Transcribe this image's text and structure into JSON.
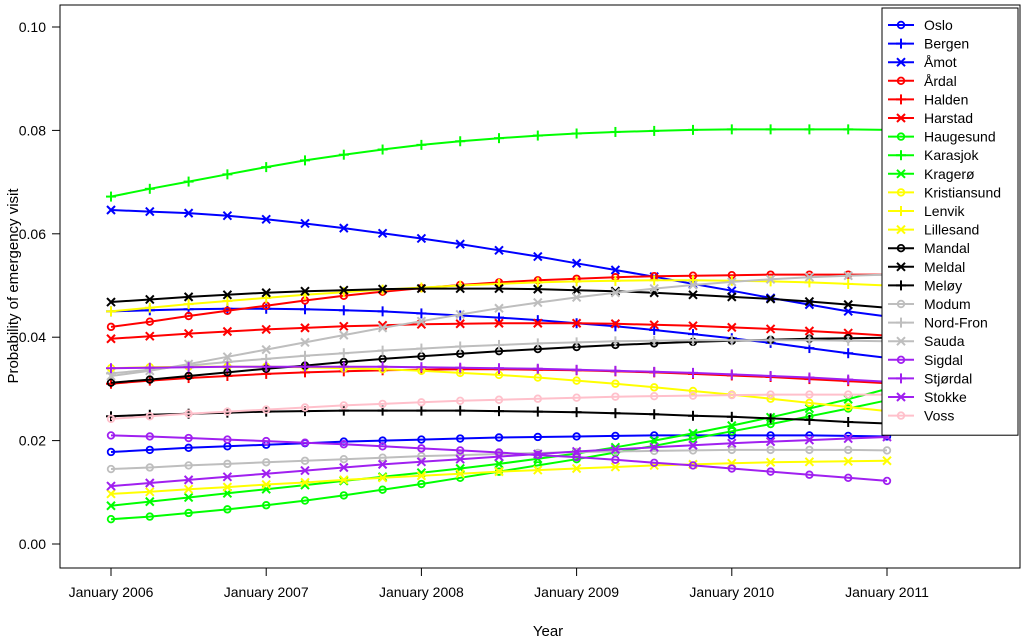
{
  "chart_data": {
    "type": "line",
    "xlabel": "Year",
    "ylabel": "Probability of emergency visit",
    "xlim": [
      2006.0,
      2011.0
    ],
    "ylim": [
      0.0,
      0.1
    ],
    "x_ticks": [
      {
        "value": 2006,
        "label": "January 2006"
      },
      {
        "value": 2007,
        "label": "January 2007"
      },
      {
        "value": 2008,
        "label": "January 2008"
      },
      {
        "value": 2009,
        "label": "January 2009"
      },
      {
        "value": 2010,
        "label": "January 2010"
      },
      {
        "value": 2011,
        "label": "January 2011"
      }
    ],
    "y_ticks": [
      {
        "value": 0.0,
        "label": "0.00"
      },
      {
        "value": 0.02,
        "label": "0.02"
      },
      {
        "value": 0.04,
        "label": "0.04"
      },
      {
        "value": 0.06,
        "label": "0.06"
      },
      {
        "value": 0.08,
        "label": "0.08"
      },
      {
        "value": 0.1,
        "label": "0.10"
      }
    ],
    "grid": false,
    "legend_position": "top-right",
    "x": [
      2006.0,
      2006.25,
      2006.5,
      2006.75,
      2007.0,
      2007.25,
      2007.5,
      2007.75,
      2008.0,
      2008.25,
      2008.5,
      2008.75,
      2009.0,
      2009.25,
      2009.5,
      2009.75,
      2010.0,
      2010.25,
      2010.5,
      2010.75,
      2011.0
    ],
    "series": [
      {
        "name": "Oslo",
        "color": "#0000FF",
        "marker": "circle",
        "values": [
          0.0178,
          0.0182,
          0.0186,
          0.0189,
          0.0192,
          0.0195,
          0.0198,
          0.02,
          0.0202,
          0.0204,
          0.0206,
          0.0207,
          0.0208,
          0.0209,
          0.021,
          0.021,
          0.021,
          0.021,
          0.021,
          0.0209,
          0.0208
        ]
      },
      {
        "name": "Bergen",
        "color": "#0000FF",
        "marker": "plus",
        "values": [
          0.045,
          0.0452,
          0.0454,
          0.0455,
          0.0455,
          0.0454,
          0.0452,
          0.045,
          0.0446,
          0.0442,
          0.0438,
          0.0433,
          0.0427,
          0.0421,
          0.0414,
          0.0406,
          0.0398,
          0.0389,
          0.0379,
          0.0369,
          0.036
        ]
      },
      {
        "name": "Åmot",
        "color": "#0000FF",
        "marker": "cross",
        "values": [
          0.0646,
          0.0643,
          0.064,
          0.0635,
          0.0628,
          0.062,
          0.0611,
          0.0601,
          0.0591,
          0.058,
          0.0568,
          0.0556,
          0.0543,
          0.053,
          0.0517,
          0.0503,
          0.049,
          0.0476,
          0.0463,
          0.045,
          0.044
        ]
      },
      {
        "name": "Årdal",
        "color": "#FF0000",
        "marker": "circle",
        "values": [
          0.042,
          0.043,
          0.0441,
          0.0451,
          0.0461,
          0.0471,
          0.048,
          0.0488,
          0.0495,
          0.0501,
          0.0506,
          0.051,
          0.0513,
          0.0516,
          0.0518,
          0.0519,
          0.052,
          0.0521,
          0.0521,
          0.0521,
          0.0521
        ]
      },
      {
        "name": "Halden",
        "color": "#FF0000",
        "marker": "plus",
        "values": [
          0.031,
          0.0316,
          0.0321,
          0.0325,
          0.0329,
          0.0332,
          0.0334,
          0.0336,
          0.0337,
          0.0338,
          0.0338,
          0.0337,
          0.0336,
          0.0334,
          0.0332,
          0.0329,
          0.0326,
          0.0323,
          0.0319,
          0.0315,
          0.0311
        ]
      },
      {
        "name": "Harstad",
        "color": "#FF0000",
        "marker": "cross",
        "values": [
          0.0397,
          0.0402,
          0.0407,
          0.0411,
          0.0415,
          0.0418,
          0.0421,
          0.0423,
          0.0425,
          0.0426,
          0.0427,
          0.0427,
          0.0427,
          0.0426,
          0.0424,
          0.0422,
          0.0419,
          0.0416,
          0.0412,
          0.0408,
          0.0403
        ]
      },
      {
        "name": "Haugesund",
        "color": "#00FF00",
        "marker": "circle",
        "values": [
          0.0048,
          0.0053,
          0.006,
          0.0067,
          0.0075,
          0.0084,
          0.0094,
          0.0105,
          0.0116,
          0.0128,
          0.014,
          0.0152,
          0.0164,
          0.0177,
          0.019,
          0.0204,
          0.0218,
          0.0232,
          0.0247,
          0.0262,
          0.0278
        ]
      },
      {
        "name": "Karasjok",
        "color": "#00FF00",
        "marker": "plus",
        "values": [
          0.0672,
          0.0687,
          0.0701,
          0.0715,
          0.0729,
          0.0742,
          0.0753,
          0.0763,
          0.0772,
          0.0779,
          0.0785,
          0.079,
          0.0794,
          0.0797,
          0.0799,
          0.0801,
          0.0802,
          0.0802,
          0.0802,
          0.0802,
          0.0801
        ]
      },
      {
        "name": "Kragerø",
        "color": "#00FF00",
        "marker": "cross",
        "values": [
          0.0074,
          0.0082,
          0.009,
          0.0098,
          0.0106,
          0.0114,
          0.0122,
          0.013,
          0.0138,
          0.0146,
          0.0155,
          0.0165,
          0.0175,
          0.0187,
          0.02,
          0.0214,
          0.0229,
          0.0245,
          0.0262,
          0.028,
          0.03
        ]
      },
      {
        "name": "Kristiansund",
        "color": "#FFFF00",
        "marker": "circle",
        "values": [
          0.034,
          0.0342,
          0.0343,
          0.0343,
          0.0343,
          0.0342,
          0.034,
          0.0338,
          0.0335,
          0.0331,
          0.0327,
          0.0322,
          0.0316,
          0.031,
          0.0303,
          0.0296,
          0.0289,
          0.0281,
          0.0273,
          0.0265,
          0.0257
        ]
      },
      {
        "name": "Lenvik",
        "color": "#FFFF00",
        "marker": "plus",
        "values": [
          0.045,
          0.0457,
          0.0464,
          0.047,
          0.0476,
          0.0482,
          0.0487,
          0.0492,
          0.0496,
          0.05,
          0.0503,
          0.0506,
          0.0508,
          0.0509,
          0.051,
          0.051,
          0.0509,
          0.0508,
          0.0506,
          0.0503,
          0.05
        ]
      },
      {
        "name": "Lillesand",
        "color": "#FFFF00",
        "marker": "cross",
        "values": [
          0.0097,
          0.0101,
          0.0106,
          0.011,
          0.0115,
          0.0119,
          0.0124,
          0.0128,
          0.0132,
          0.0136,
          0.014,
          0.0143,
          0.0146,
          0.0149,
          0.0152,
          0.0154,
          0.0156,
          0.0158,
          0.0159,
          0.016,
          0.0161
        ]
      },
      {
        "name": "Mandal",
        "color": "#000000",
        "marker": "circle",
        "values": [
          0.0312,
          0.0318,
          0.0325,
          0.0332,
          0.0339,
          0.0345,
          0.0352,
          0.0358,
          0.0363,
          0.0368,
          0.0373,
          0.0377,
          0.0381,
          0.0385,
          0.0388,
          0.0391,
          0.0393,
          0.0395,
          0.0397,
          0.0398,
          0.0399
        ]
      },
      {
        "name": "Meldal",
        "color": "#000000",
        "marker": "cross",
        "values": [
          0.0468,
          0.0473,
          0.0478,
          0.0482,
          0.0486,
          0.0489,
          0.0491,
          0.0493,
          0.0494,
          0.0494,
          0.0494,
          0.0493,
          0.0491,
          0.0489,
          0.0486,
          0.0482,
          0.0478,
          0.0474,
          0.0469,
          0.0463,
          0.0457
        ]
      },
      {
        "name": "Meløy",
        "color": "#000000",
        "marker": "plus",
        "values": [
          0.0247,
          0.025,
          0.0252,
          0.0254,
          0.0256,
          0.0257,
          0.0258,
          0.0258,
          0.0258,
          0.0258,
          0.0257,
          0.0256,
          0.0255,
          0.0253,
          0.0251,
          0.0248,
          0.0246,
          0.0243,
          0.024,
          0.0236,
          0.0233
        ]
      },
      {
        "name": "Modum",
        "color": "#BEBEBE",
        "marker": "circle",
        "values": [
          0.0145,
          0.0148,
          0.0152,
          0.0155,
          0.0158,
          0.0161,
          0.0164,
          0.0167,
          0.017,
          0.0172,
          0.0174,
          0.0176,
          0.0178,
          0.0179,
          0.018,
          0.0181,
          0.0182,
          0.0182,
          0.0182,
          0.0182,
          0.0181
        ]
      },
      {
        "name": "Nord-Fron",
        "color": "#BEBEBE",
        "marker": "plus",
        "values": [
          0.033,
          0.0337,
          0.0345,
          0.0352,
          0.0358,
          0.0364,
          0.0369,
          0.0374,
          0.0378,
          0.0382,
          0.0385,
          0.0388,
          0.039,
          0.0392,
          0.0393,
          0.0394,
          0.0394,
          0.0394,
          0.0394,
          0.0393,
          0.0392
        ]
      },
      {
        "name": "Sauda",
        "color": "#BEBEBE",
        "marker": "cross",
        "values": [
          0.0325,
          0.0335,
          0.0348,
          0.0362,
          0.0376,
          0.039,
          0.0404,
          0.0418,
          0.0431,
          0.0444,
          0.0456,
          0.0467,
          0.0477,
          0.0486,
          0.0494,
          0.0501,
          0.0507,
          0.0512,
          0.0516,
          0.0519,
          0.0521
        ]
      },
      {
        "name": "Sigdal",
        "color": "#A020F0",
        "marker": "circle",
        "values": [
          0.021,
          0.0208,
          0.0205,
          0.0202,
          0.0199,
          0.0196,
          0.0193,
          0.0189,
          0.0185,
          0.0181,
          0.0177,
          0.0172,
          0.0168,
          0.0163,
          0.0157,
          0.0152,
          0.0146,
          0.014,
          0.0134,
          0.0128,
          0.0122
        ]
      },
      {
        "name": "Stjørdal",
        "color": "#A020F0",
        "marker": "plus",
        "values": [
          0.034,
          0.0341,
          0.0342,
          0.0343,
          0.0343,
          0.0343,
          0.0343,
          0.0343,
          0.0342,
          0.0341,
          0.034,
          0.0339,
          0.0337,
          0.0335,
          0.0333,
          0.0331,
          0.0328,
          0.0325,
          0.0322,
          0.0318,
          0.0314
        ]
      },
      {
        "name": "Stokke",
        "color": "#A020F0",
        "marker": "cross",
        "values": [
          0.0112,
          0.0118,
          0.0124,
          0.013,
          0.0136,
          0.0142,
          0.0148,
          0.0154,
          0.0159,
          0.0164,
          0.0169,
          0.0174,
          0.0179,
          0.0183,
          0.0187,
          0.0191,
          0.0195,
          0.0198,
          0.0201,
          0.0204,
          0.0207
        ]
      },
      {
        "name": "Voss",
        "color": "#FFC0CB",
        "marker": "circle",
        "values": [
          0.0242,
          0.0247,
          0.0252,
          0.0256,
          0.026,
          0.0264,
          0.0268,
          0.0271,
          0.0274,
          0.0277,
          0.0279,
          0.0281,
          0.0283,
          0.0285,
          0.0286,
          0.0287,
          0.0288,
          0.0289,
          0.0289,
          0.0289,
          0.0289
        ]
      }
    ]
  }
}
